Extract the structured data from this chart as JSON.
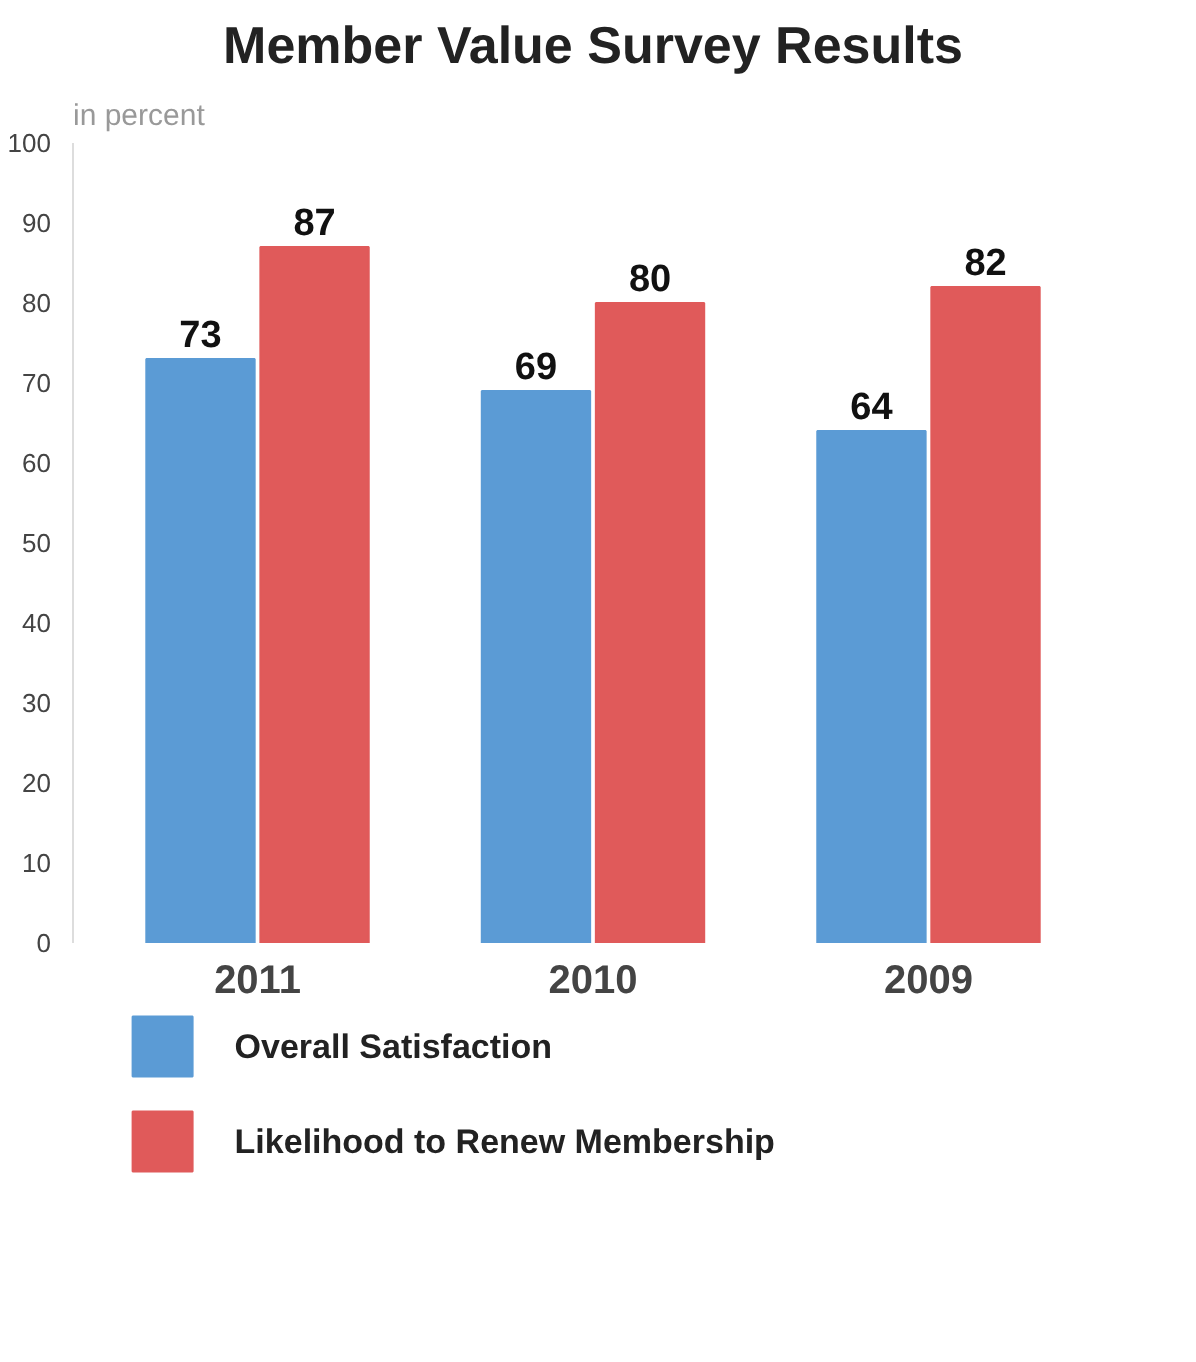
{
  "chart_data": {
    "type": "bar",
    "title": "Member Value Survey Results",
    "subtitle": "in percent",
    "categories": [
      "2011",
      "2010",
      "2009"
    ],
    "series": [
      {
        "name": "Overall Satisfaction",
        "color": "#5b9bd5",
        "values": [
          73,
          69,
          64
        ]
      },
      {
        "name": "Likelihood to Renew Membership",
        "color": "#e05a5a",
        "values": [
          87,
          80,
          82
        ]
      }
    ],
    "ylim": [
      0,
      100
    ],
    "yticks": [
      0,
      10,
      20,
      30,
      40,
      50,
      60,
      70,
      80,
      90,
      100
    ],
    "data_labels": true,
    "grid": false,
    "legend": "bottom"
  }
}
